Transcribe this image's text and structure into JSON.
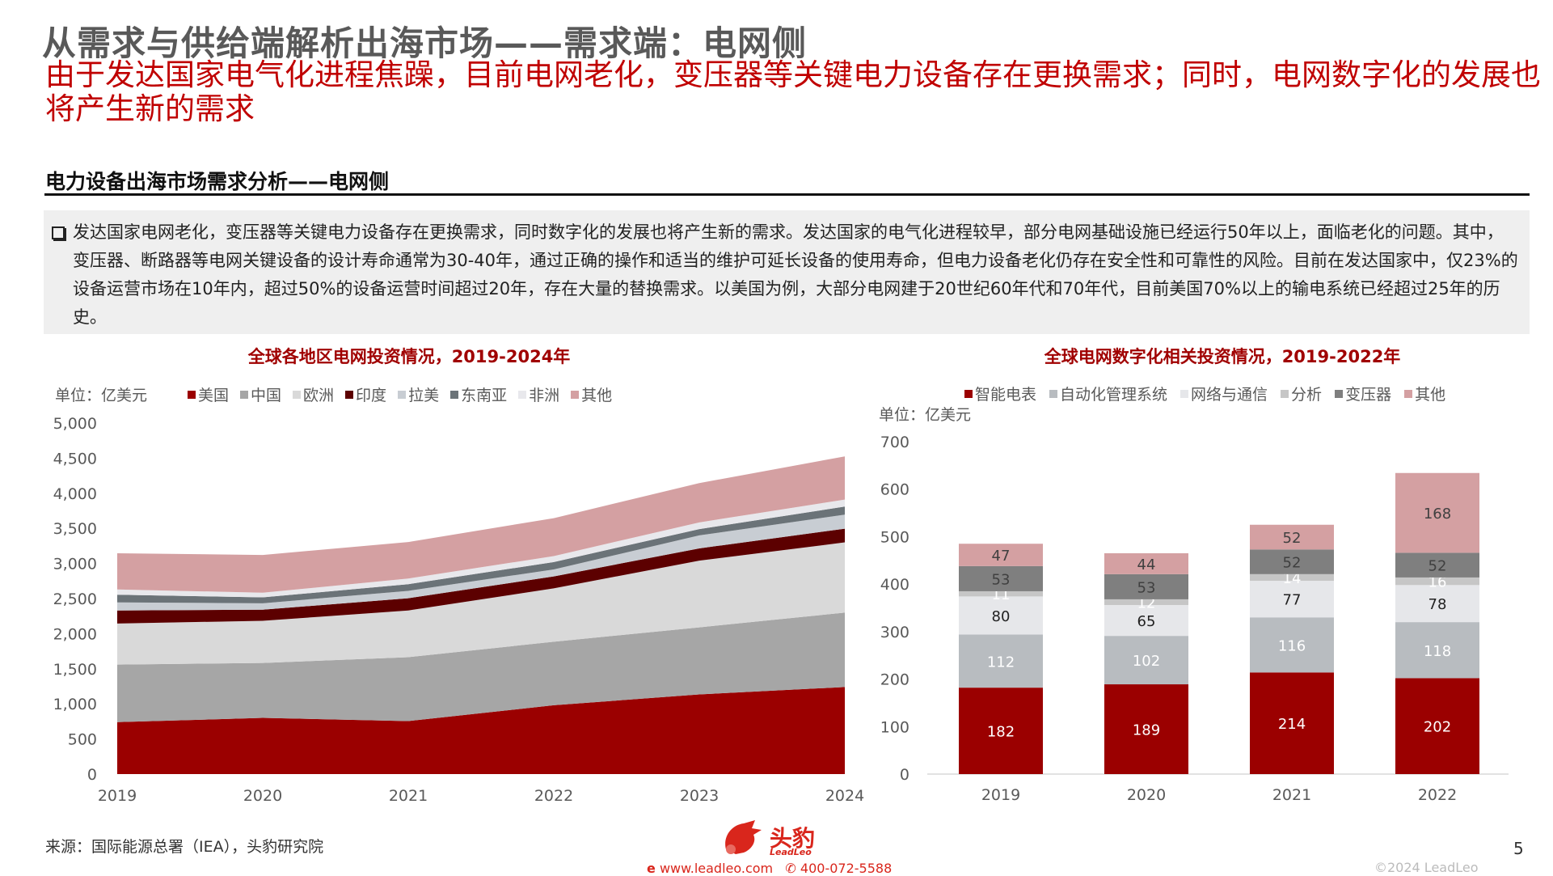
{
  "header": {
    "title": "从需求与供给端解析出海市场——需求端：电网侧",
    "subtitle": "由于发达国家电气化进程焦躁，目前电网老化，变压器等关键电力设备存在更换需求；同时，电网数字化的发展也将产生新的需求"
  },
  "section": {
    "heading": "电力设备出海市场需求分析——电网侧",
    "body": "发达国家电网老化，变压器等关键电力设备存在更换需求，同时数字化的发展也将产生新的需求。发达国家的电气化进程较早，部分电网基础设施已经运行50年以上，面临老化的问题。其中，变压器、断路器等电网关键设备的设计寿命通常为30-40年，通过正确的操作和适当的维护可延长设备的使用寿命，但电力设备老化仍存在安全性和可靠性的风险。目前在发达国家中，仅23%的设备运营市场在10年内，超过50%的设备运营时间超过20年，存在大量的替换需求。以美国为例，大部分电网建于20世纪60年代和70年代，目前美国70%以上的输电系统已经超过25年的历史。"
  },
  "chart_data": [
    {
      "type": "area",
      "stacked": true,
      "title": "全球各地区电网投资情况，2019-2024年",
      "unit_label": "单位：亿美元",
      "x": [
        "2019",
        "2020",
        "2021",
        "2022",
        "2023",
        "2024"
      ],
      "ylim": [
        0,
        5000
      ],
      "yticks": [
        "0",
        "500",
        "1,000",
        "1,500",
        "2,000",
        "2,500",
        "3,000",
        "3,500",
        "4,000",
        "4,500",
        "5,000"
      ],
      "grid": false,
      "legend": "top",
      "series": [
        {
          "name": "美国",
          "color": "#9b0000",
          "values": [
            740,
            800,
            755,
            980,
            1135,
            1240
          ]
        },
        {
          "name": "中国",
          "color": "#a6a6a6",
          "values": [
            820,
            783,
            910,
            905,
            955,
            1060
          ]
        },
        {
          "name": "欧洲",
          "color": "#d9d9d9",
          "values": [
            585,
            600,
            665,
            760,
            950,
            1000
          ]
        },
        {
          "name": "印度",
          "color": "#5c0000",
          "values": [
            185,
            159,
            175,
            170,
            175,
            195
          ]
        },
        {
          "name": "拉美",
          "color": "#c8cdd3",
          "values": [
            115,
            91,
            105,
            100,
            185,
            200
          ]
        },
        {
          "name": "东南亚",
          "color": "#6b7378",
          "values": [
            110,
            84,
            95,
            105,
            90,
            115
          ]
        },
        {
          "name": "非洲",
          "color": "#e8e8ec",
          "values": [
            75,
            66,
            80,
            85,
            95,
            100
          ]
        },
        {
          "name": "其他",
          "color": "#d4a0a2",
          "values": [
            515,
            538,
            520,
            540,
            560,
            615
          ]
        }
      ]
    },
    {
      "type": "bar",
      "stacked": true,
      "title": "全球电网数字化相关投资情况，2019-2022年",
      "unit_label": "单位：亿美元",
      "categories": [
        "2019",
        "2020",
        "2021",
        "2022"
      ],
      "ylim": [
        0,
        700
      ],
      "yticks": [
        "0",
        "100",
        "200",
        "300",
        "400",
        "500",
        "600",
        "700"
      ],
      "grid": false,
      "legend": "top",
      "series": [
        {
          "name": "智能电表",
          "color": "#9b0000",
          "label_color": "#ffffff",
          "values": [
            182,
            189,
            214,
            202
          ]
        },
        {
          "name": "自动化管理系统",
          "color": "#b8bcc0",
          "label_color": "#ffffff",
          "values": [
            112,
            102,
            116,
            118
          ]
        },
        {
          "name": "网络与通信",
          "color": "#e6e7ea",
          "label_color": "#222222",
          "values": [
            80,
            65,
            77,
            78
          ]
        },
        {
          "name": "分析",
          "color": "#c6c6c6",
          "label_color": "#ffffff",
          "values": [
            11,
            12,
            14,
            16
          ]
        },
        {
          "name": "变压器",
          "color": "#7f7f7f",
          "label_color": "#404040",
          "values": [
            53,
            53,
            52,
            52
          ]
        },
        {
          "name": "其他",
          "color": "#d4a0a2",
          "label_color": "#404040",
          "values": [
            47,
            44,
            52,
            168
          ]
        }
      ]
    }
  ],
  "footer": {
    "source": "来源：国际能源总署（IEA），头豹研究院",
    "logo_text": "头豹",
    "logo_sub": "LeadLeo",
    "website": "www.leadleo.com",
    "phone": "400-072-5588",
    "copyright": "©2024 LeadLeo",
    "page_number": "5"
  }
}
